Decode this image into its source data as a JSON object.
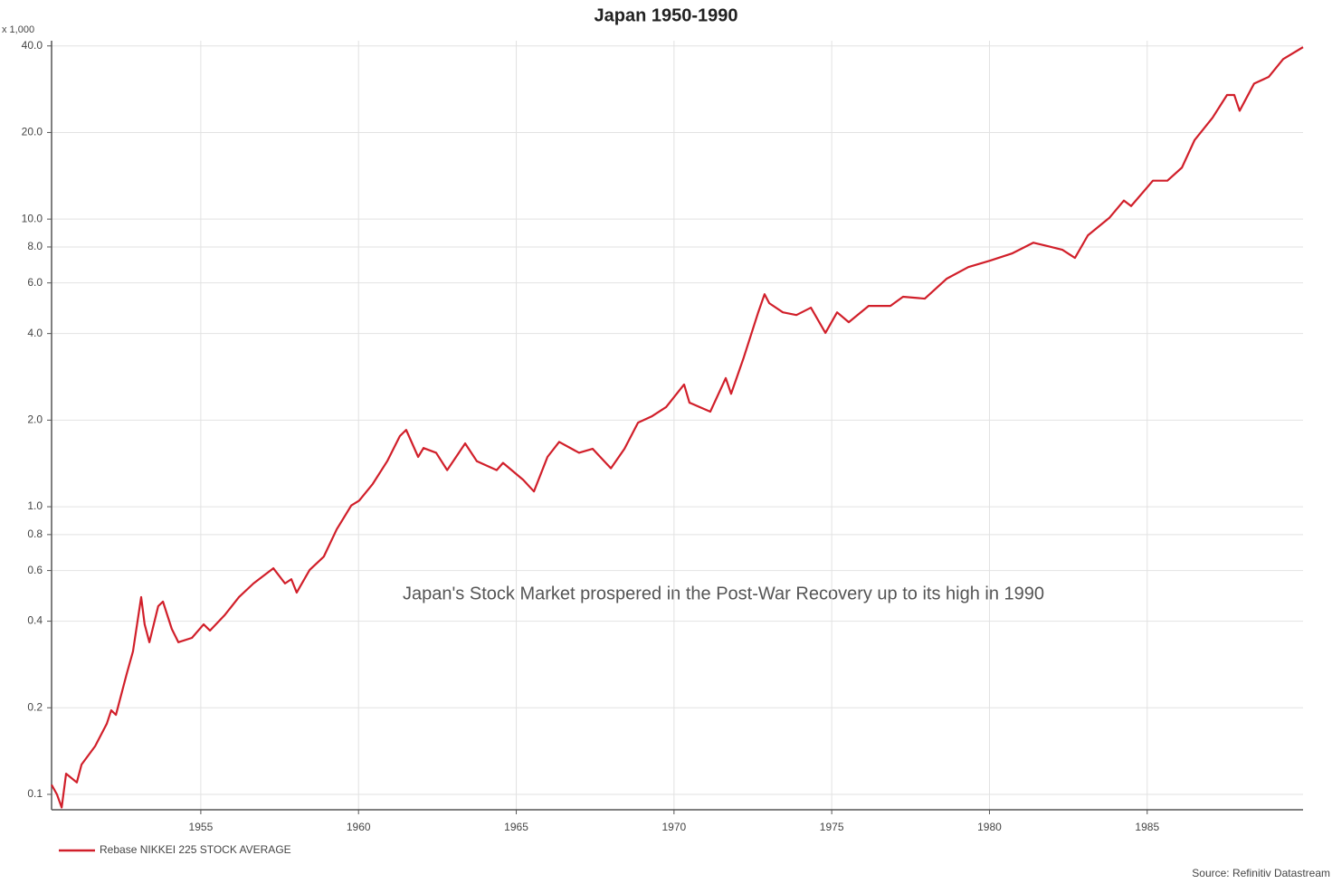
{
  "chart_data": {
    "type": "line",
    "title": "Japan 1950-1990",
    "y_axis_label": "x 1,000",
    "annotation": "Japan's Stock Market prospered in the Post-War Recovery up to its high in 1990",
    "source": "Source: Refinitiv Datastream",
    "log_y": true,
    "grid": true,
    "legend": "bottom-left",
    "xlim": [
      1950.27,
      1989.94
    ],
    "ylim": [
      0.0884,
      41.7
    ],
    "xticks": [
      1955,
      1960,
      1965,
      1970,
      1975,
      1980,
      1985
    ],
    "yticks": [
      0.1,
      0.2,
      0.4,
      0.6,
      0.8,
      {
        "value": 1,
        "label": "1.0"
      },
      {
        "value": 2,
        "label": "2.0"
      },
      {
        "value": 4,
        "label": "4.0"
      },
      {
        "value": 6,
        "label": "6.0"
      },
      {
        "value": 8,
        "label": "8.0"
      },
      {
        "value": 10,
        "label": "10.0"
      },
      {
        "value": 20,
        "label": "20.0"
      },
      {
        "value": 40,
        "label": "40.0"
      }
    ],
    "x": [
      1950.27,
      1950.44,
      1950.59,
      1950.73,
      1951.07,
      1951.22,
      1951.65,
      1952.02,
      1952.16,
      1952.31,
      1952.65,
      1952.85,
      1953.11,
      1953.22,
      1953.37,
      1953.65,
      1953.8,
      1954.08,
      1954.29,
      1954.72,
      1955.09,
      1955.29,
      1955.75,
      1956.21,
      1956.67,
      1957.3,
      1957.67,
      1957.87,
      1958.04,
      1958.45,
      1958.9,
      1959.31,
      1959.77,
      1960.02,
      1960.45,
      1960.91,
      1961.31,
      1961.51,
      1961.89,
      1962.06,
      1962.46,
      1962.81,
      1963.38,
      1963.75,
      1964.38,
      1964.58,
      1965.22,
      1965.56,
      1965.99,
      1966.36,
      1966.99,
      1967.42,
      1968.0,
      1968.43,
      1968.86,
      1969.29,
      1969.75,
      1970.32,
      1970.49,
      1971.15,
      1971.64,
      1971.81,
      1972.21,
      1972.67,
      1972.87,
      1973.02,
      1973.45,
      1973.88,
      1974.34,
      1974.8,
      1975.17,
      1975.54,
      1976.17,
      1976.86,
      1977.26,
      1977.95,
      1978.64,
      1979.33,
      1980.02,
      1980.71,
      1981.39,
      1981.85,
      1982.31,
      1982.71,
      1983.12,
      1983.8,
      1984.26,
      1984.49,
      1985.18,
      1985.64,
      1986.1,
      1986.5,
      1987.07,
      1987.53,
      1987.76,
      1987.93,
      1988.39,
      1988.85,
      1989.31,
      1989.94
    ],
    "series": [
      {
        "name": "Rebase NIKKEI 225 STOCK AVERAGE",
        "color": "#d11f2a",
        "values": [
          0.108,
          0.1,
          0.09,
          0.118,
          0.11,
          0.127,
          0.147,
          0.176,
          0.196,
          0.189,
          0.262,
          0.314,
          0.485,
          0.39,
          0.338,
          0.451,
          0.468,
          0.376,
          0.338,
          0.35,
          0.39,
          0.371,
          0.419,
          0.485,
          0.541,
          0.611,
          0.541,
          0.56,
          0.503,
          0.603,
          0.671,
          0.835,
          1.01,
          1.05,
          1.2,
          1.44,
          1.76,
          1.85,
          1.49,
          1.6,
          1.54,
          1.34,
          1.66,
          1.44,
          1.34,
          1.42,
          1.24,
          1.13,
          1.49,
          1.68,
          1.54,
          1.59,
          1.36,
          1.59,
          1.96,
          2.06,
          2.22,
          2.66,
          2.3,
          2.14,
          2.8,
          2.47,
          3.3,
          4.74,
          5.48,
          5.1,
          4.74,
          4.64,
          4.92,
          4.02,
          4.74,
          4.38,
          4.99,
          4.99,
          5.37,
          5.29,
          6.2,
          6.81,
          7.17,
          7.59,
          8.28,
          8.05,
          7.82,
          7.33,
          8.78,
          10.1,
          11.6,
          11.1,
          13.6,
          13.6,
          15.1,
          18.8,
          22.5,
          27.0,
          27.0,
          23.8,
          29.6,
          31.2,
          36.0,
          39.6
        ]
      }
    ]
  }
}
